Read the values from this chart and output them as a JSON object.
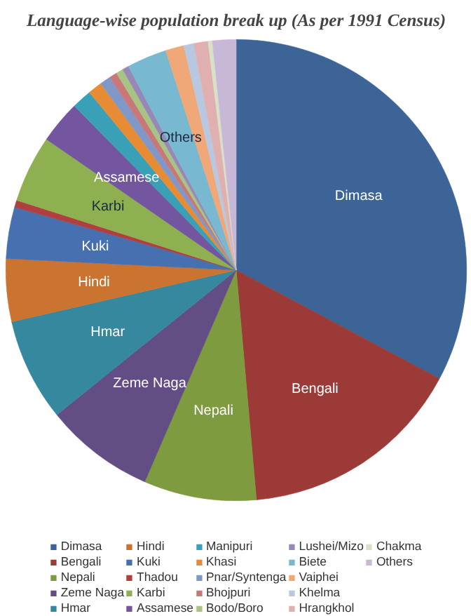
{
  "chart_data": {
    "type": "pie",
    "title": "Language-wise population break up (As per 1991 Census)",
    "categories": [
      "Dimasa",
      "Bengali",
      "Nepali",
      "Zeme Naga",
      "Hmar",
      "Hindi",
      "Kuki",
      "Thadou",
      "Karbi",
      "Assamese",
      "Manipuri",
      "Khasi",
      "Pnar/Syntenga",
      "Bhojpuri",
      "Bodo/Boro",
      "Lushei/Mizo",
      "Biete",
      "Vaiphei",
      "Khelma",
      "Hrangkhol",
      "Chakma",
      "Others"
    ],
    "values": [
      32.8,
      15.8,
      7.9,
      7.7,
      7.2,
      4.4,
      3.6,
      0.5,
      4.7,
      3.0,
      1.4,
      1.0,
      0.75,
      0.55,
      0.5,
      0.45,
      2.8,
      1.3,
      0.7,
      1.0,
      0.3,
      1.65
    ],
    "colors": [
      "#3c6496",
      "#9c3a38",
      "#7f9b3f",
      "#634d85",
      "#36889f",
      "#cb7432",
      "#4770b0",
      "#b0403f",
      "#8fb050",
      "#7455a0",
      "#3aa0b8",
      "#e88b35",
      "#8098c8",
      "#c87878",
      "#a8c484",
      "#9888b8",
      "#78b8d0",
      "#f0a878",
      "#b8c8e0",
      "#e0b0b0",
      "#d8e0c8",
      "#c8b8d8"
    ],
    "value_labels": [
      "Dimasa",
      "Bengali",
      "Nepali",
      "Zeme Naga",
      "Hmar",
      "Hindi",
      "Kuki",
      null,
      "Karbi",
      "Assamese",
      null,
      null,
      null,
      null,
      null,
      null,
      "Others",
      null,
      null,
      null,
      null,
      null
    ],
    "legend": "bottom"
  }
}
